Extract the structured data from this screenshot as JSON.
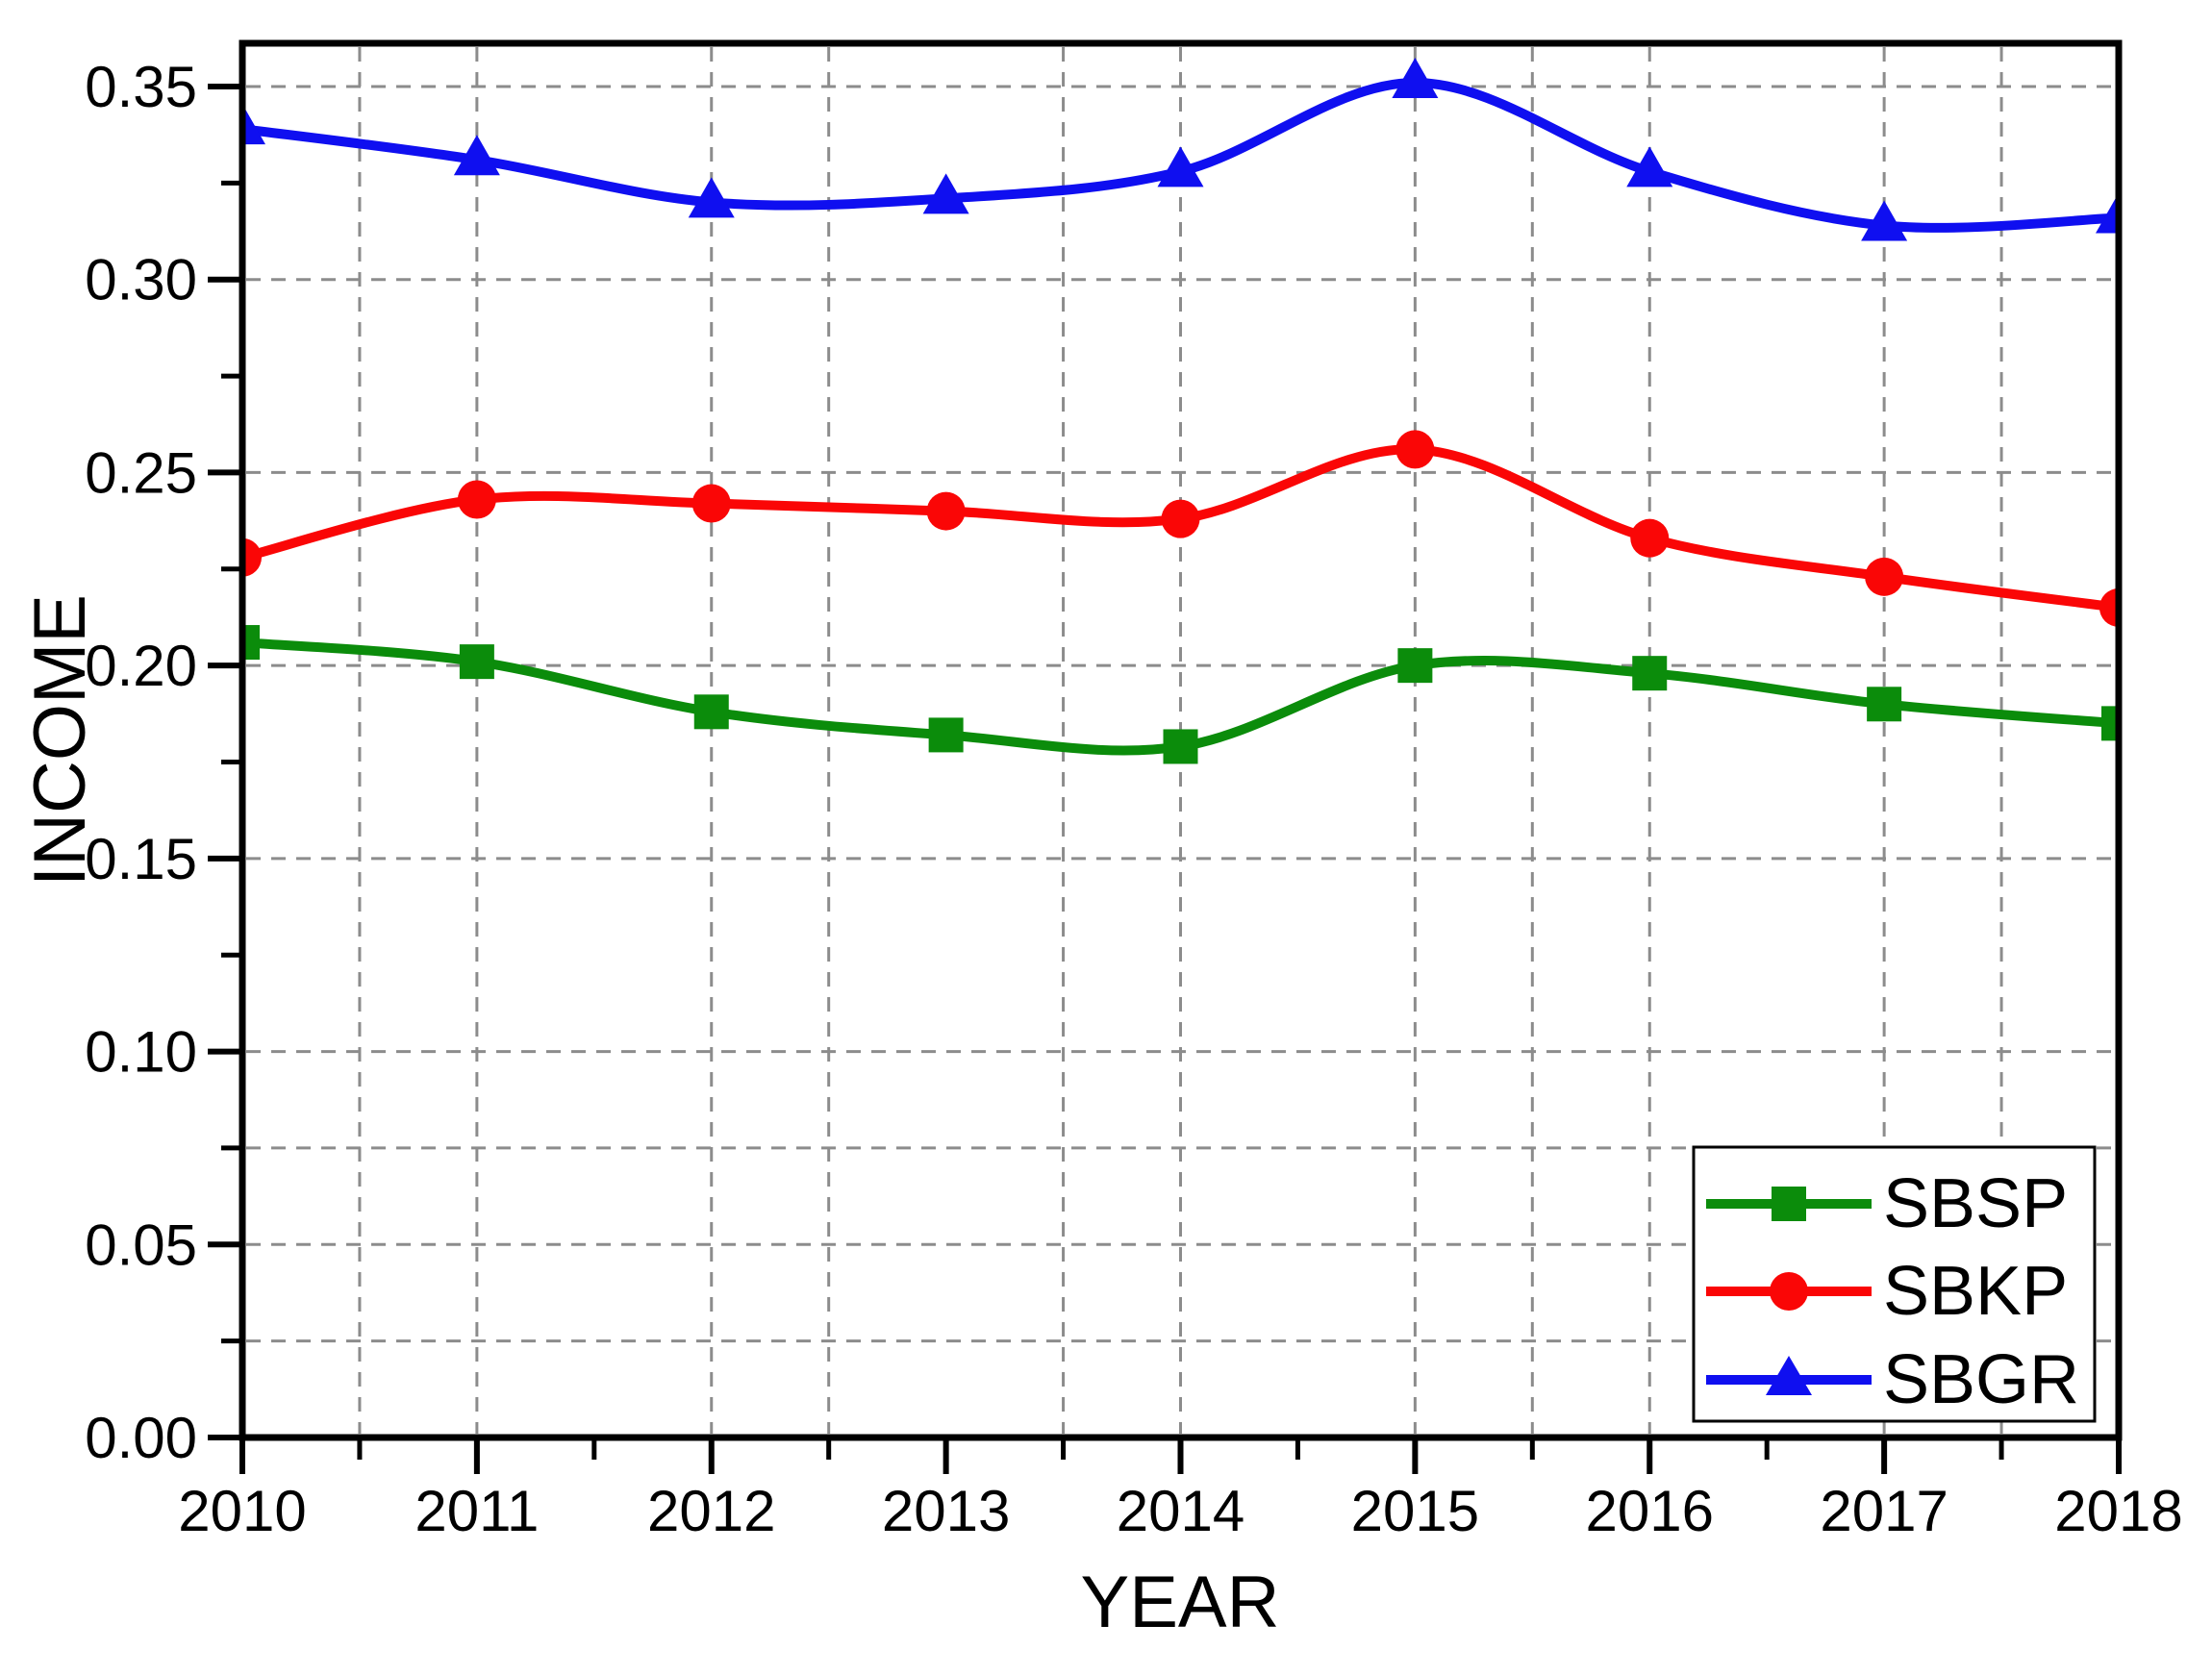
{
  "chart_data": {
    "type": "line",
    "title": "",
    "xlabel": "YEAR",
    "ylabel": "INCOME",
    "x": [
      2010,
      2011,
      2012,
      2013,
      2014,
      2015,
      2016,
      2017,
      2018
    ],
    "series": [
      {
        "name": "SBSP",
        "color": "#0b8c0b",
        "marker": "square",
        "values": [
          0.206,
          0.201,
          0.188,
          0.182,
          0.179,
          0.2,
          0.198,
          0.19,
          0.185
        ]
      },
      {
        "name": "SBKP",
        "color": "#fa0606",
        "marker": "circle",
        "values": [
          0.228,
          0.243,
          0.242,
          0.24,
          0.238,
          0.256,
          0.233,
          0.223,
          0.215
        ]
      },
      {
        "name": "SBGR",
        "color": "#0f0ff0",
        "marker": "triangle",
        "values": [
          0.339,
          0.331,
          0.32,
          0.321,
          0.328,
          0.351,
          0.328,
          0.314,
          0.316
        ]
      }
    ],
    "xlim": [
      2010,
      2018
    ],
    "ylim": [
      0.0,
      0.35
    ],
    "grid": {
      "y_lines": [
        0.025,
        0.05,
        0.075,
        0.1,
        0.15,
        0.2,
        0.25,
        0.3,
        0.35
      ],
      "x_lines": [
        2010.5,
        2011,
        2012,
        2012.5,
        2013.5,
        2014,
        2015,
        2015.5,
        2016,
        2017,
        2017.5
      ]
    },
    "legend_position": "bottom-right"
  },
  "axes": {
    "y_tick_labels": [
      "0.00",
      "0.05",
      "0.10",
      "0.15",
      "0.20",
      "0.25",
      "0.30",
      "0.35"
    ],
    "x_tick_labels": [
      "2010",
      "2011",
      "2012",
      "2013",
      "2014",
      "2015",
      "2016",
      "2017",
      "2018"
    ]
  }
}
